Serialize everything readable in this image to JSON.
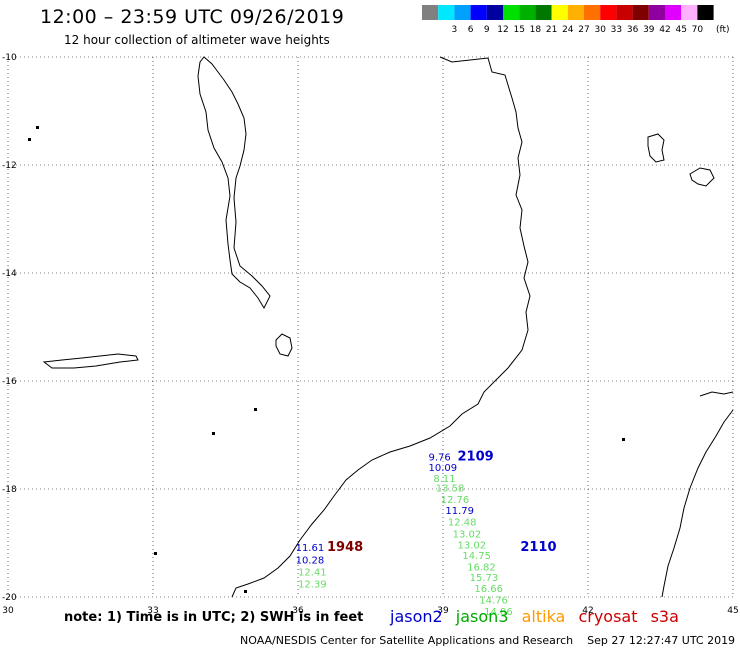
{
  "header": {
    "title": "12:00 – 23:59 UTC 09/26/2019",
    "subtitle": "12 hour collection of altimeter wave heights"
  },
  "legend": {
    "unit": "(ft)",
    "swatches": [
      {
        "color": "#808080",
        "label": ""
      },
      {
        "color": "#00e8ff",
        "label": "3"
      },
      {
        "color": "#00a0ff",
        "label": "6"
      },
      {
        "color": "#0000ff",
        "label": "9"
      },
      {
        "color": "#0000a0",
        "label": "12"
      },
      {
        "color": "#00e000",
        "label": "15"
      },
      {
        "color": "#00b000",
        "label": "18"
      },
      {
        "color": "#007800",
        "label": "21"
      },
      {
        "color": "#ffff00",
        "label": "24"
      },
      {
        "color": "#ffb000",
        "label": "27"
      },
      {
        "color": "#ff7000",
        "label": "30"
      },
      {
        "color": "#ff0000",
        "label": "33"
      },
      {
        "color": "#c80000",
        "label": "36"
      },
      {
        "color": "#800000",
        "label": "39"
      },
      {
        "color": "#9000a0",
        "label": "42"
      },
      {
        "color": "#e000ff",
        "label": "45"
      },
      {
        "color": "#ffb0ff",
        "label": "70"
      },
      {
        "color": "#000000",
        "label": ""
      }
    ]
  },
  "map": {
    "lon_range": [
      30,
      45
    ],
    "lat_range": [
      -20,
      -10
    ],
    "x_ticks": [
      {
        "value": 30,
        "label": "30"
      },
      {
        "value": 33,
        "label": "33"
      },
      {
        "value": 36,
        "label": "36"
      },
      {
        "value": 39,
        "label": "39"
      },
      {
        "value": 42,
        "label": "42"
      },
      {
        "value": 45,
        "label": "45"
      }
    ],
    "y_ticks": [
      {
        "value": -10,
        "label": "-10"
      },
      {
        "value": -12,
        "label": "-12"
      },
      {
        "value": -14,
        "label": "-14"
      },
      {
        "value": -16,
        "label": "-16"
      },
      {
        "value": -18,
        "label": "-18"
      },
      {
        "value": -20,
        "label": "-20"
      }
    ],
    "coastlines": [
      [
        [
          33.9,
          -10.0
        ],
        [
          34.0,
          -10.3
        ],
        [
          34.35,
          -10.75
        ],
        [
          34.6,
          -11.2
        ],
        [
          34.55,
          -11.7
        ],
        [
          34.3,
          -11.85
        ],
        [
          34.05,
          -11.5
        ],
        [
          34.05,
          -11.0
        ],
        [
          33.9,
          -10.5
        ],
        [
          33.9,
          -10.0
        ]
      ],
      [
        [
          34.55,
          -11.7
        ],
        [
          34.6,
          -12.3
        ],
        [
          34.5,
          -13.0
        ],
        [
          34.45,
          -13.5
        ],
        [
          34.6,
          -13.9
        ],
        [
          34.95,
          -14.2
        ],
        [
          35.25,
          -14.25
        ],
        [
          35.3,
          -14.05
        ],
        [
          35.05,
          -13.7
        ],
        [
          34.8,
          -13.3
        ],
        [
          34.65,
          -12.6
        ],
        [
          34.55,
          -11.7
        ]
      ]
    ]
  },
  "passes": [
    {
      "satellite": "jason2",
      "time": "2109",
      "lon": 39.3,
      "lat": -17.47
    },
    {
      "satellite": "jason2",
      "time": "2110",
      "lon": 40.6,
      "lat": -19.15
    },
    {
      "satellite": "cryosat",
      "time": "1948",
      "lon": 36.6,
      "lat": -19.15
    }
  ],
  "track_values": [
    {
      "value": "9.76",
      "satellite": "jason2",
      "lon": 38.7,
      "lat": -17.47
    },
    {
      "value": "10.09",
      "satellite": "jason2",
      "lon": 38.7,
      "lat": -17.67
    },
    {
      "value": "8.11",
      "satellite": "jason3",
      "lon": 38.8,
      "lat": -17.87
    },
    {
      "value": "13.58",
      "satellite": "jason3",
      "lon": 38.85,
      "lat": -18.05
    },
    {
      "value": "12.76",
      "satellite": "jason3",
      "lon": 38.95,
      "lat": -18.26
    },
    {
      "value": "11.79",
      "satellite": "jason2",
      "lon": 39.05,
      "lat": -18.46
    },
    {
      "value": "12.48",
      "satellite": "jason3",
      "lon": 39.1,
      "lat": -18.68
    },
    {
      "value": "13.02",
      "satellite": "jason3",
      "lon": 39.2,
      "lat": -18.9
    },
    {
      "value": "13.02",
      "satellite": "jason3",
      "lon": 39.3,
      "lat": -19.1
    },
    {
      "value": "14.75",
      "satellite": "jason3",
      "lon": 39.4,
      "lat": -19.3
    },
    {
      "value": "16.82",
      "satellite": "jason3",
      "lon": 39.5,
      "lat": -19.51
    },
    {
      "value": "15.73",
      "satellite": "jason3",
      "lon": 39.55,
      "lat": -19.7
    },
    {
      "value": "16.66",
      "satellite": "jason3",
      "lon": 39.65,
      "lat": -19.91
    },
    {
      "value": "14.76",
      "satellite": "jason3",
      "lon": 39.75,
      "lat": -20.12
    },
    {
      "value": "14.86",
      "satellite": "jason3",
      "lon": 39.85,
      "lat": -20.33
    },
    {
      "value": "11.61",
      "satellite": "jason2",
      "lon": 35.95,
      "lat": -19.15
    },
    {
      "value": "10.28",
      "satellite": "jason2",
      "lon": 35.95,
      "lat": -19.38
    },
    {
      "value": "12.41",
      "satellite": "jason3",
      "lon": 36.0,
      "lat": -19.6
    },
    {
      "value": "12.39",
      "satellite": "jason3",
      "lon": 36.0,
      "lat": -19.82
    }
  ],
  "satellite_colors": {
    "jason2": "#0000cc",
    "jason3": "#00aa00",
    "altika": "#ff9900",
    "cryosat": "#cc0000",
    "s3a": "#cc0000",
    "cryosat_time": "#800000",
    "jason3_values": "#66dd66"
  },
  "footer": {
    "note": "note: 1) Time is in UTC; 2) SWH is in feet",
    "satellites": [
      "jason2",
      "jason3",
      "altika",
      "cryosat",
      "s3a"
    ],
    "credit": "NOAA/NESDIS Center for Satellite Applications and Research",
    "timestamp": "Sep 27 12:27:47 UTC 2019"
  }
}
